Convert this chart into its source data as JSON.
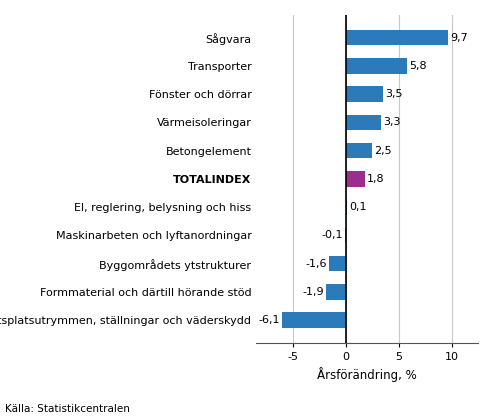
{
  "categories": [
    "Sågvara",
    "Transporter",
    "Fönster och dörrar",
    "Värmeisoleringar",
    "Betongelement",
    "TOTALINDEX",
    "El, reglering, belysning och hiss",
    "Maskinarbeten och lyftanordningar",
    "Byggområdets ytstrukturer",
    "Formmaterial och därtill hörande stöd",
    "Arbetsplatsutrymmen, ställningar och väderskydd"
  ],
  "values": [
    9.7,
    5.8,
    3.5,
    3.3,
    2.5,
    1.8,
    0.1,
    -0.1,
    -1.6,
    -1.9,
    -6.1
  ],
  "bar_colors": [
    "#2b7bba",
    "#2b7bba",
    "#2b7bba",
    "#2b7bba",
    "#2b7bba",
    "#9b2d8e",
    "#2b7bba",
    "#2b7bba",
    "#2b7bba",
    "#2b7bba",
    "#2b7bba"
  ],
  "xlabel": "Årsförändring, %",
  "xlim": [
    -8.5,
    12.5
  ],
  "xticks": [
    -5,
    0,
    5,
    10
  ],
  "source": "Källa: Statistikcentralen",
  "label_fontsize": 8.0,
  "tick_fontsize": 8.0,
  "xlabel_fontsize": 8.5,
  "source_fontsize": 7.5
}
